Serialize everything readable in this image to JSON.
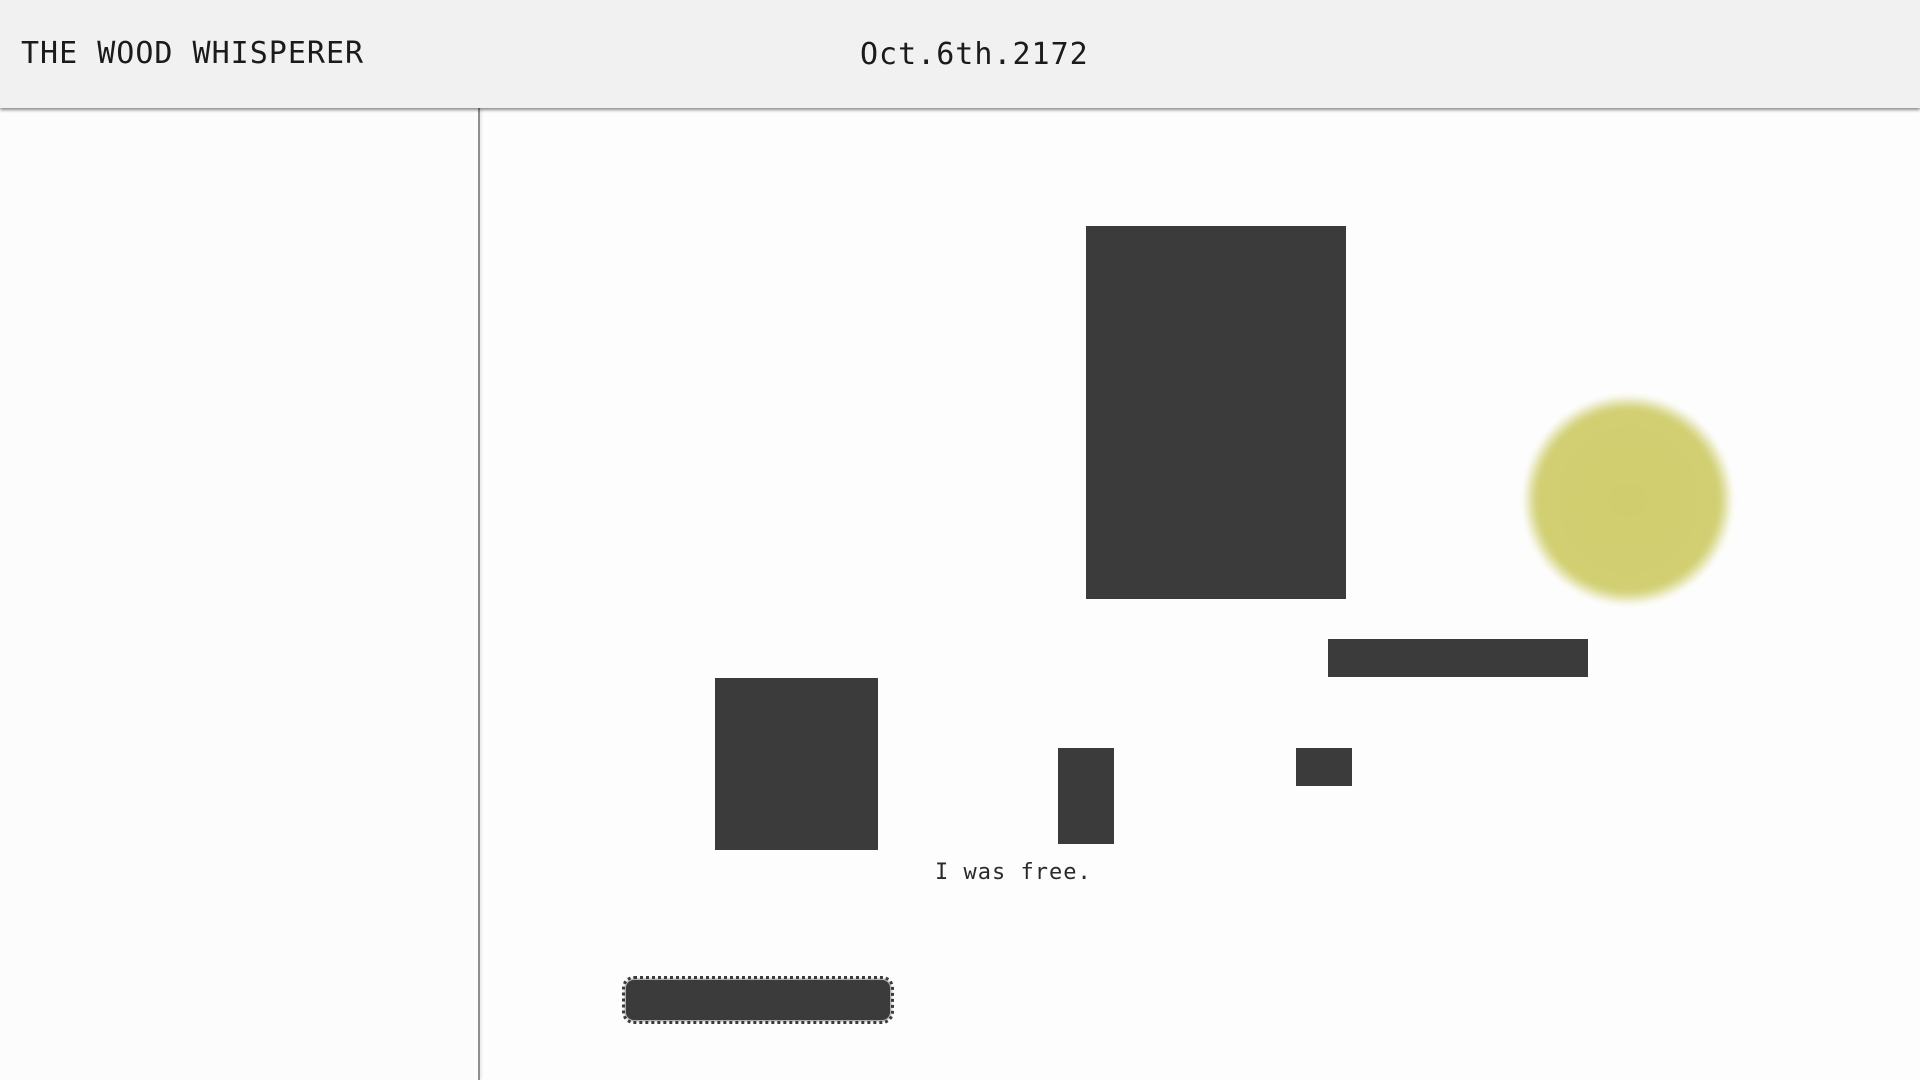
{
  "header": {
    "title": "THE WOOD WHISPERER",
    "date": "Oct.6th.2172"
  },
  "stage": {
    "caption": "I was free.",
    "colors": {
      "block": "#3b3b3b",
      "sun": "#d1cf72",
      "background": "#fdfdfd",
      "header": "#f1f1f2"
    }
  }
}
